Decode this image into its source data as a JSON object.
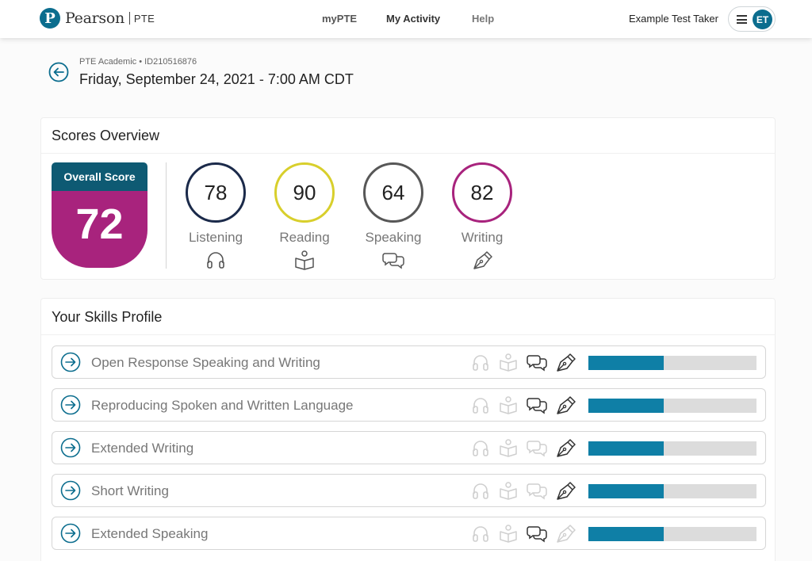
{
  "header": {
    "logo_letter": "P",
    "brand": "Pearson",
    "product": "PTE",
    "nav": [
      {
        "label": "myPTE"
      },
      {
        "label": "My Activity"
      },
      {
        "label": "Help"
      }
    ],
    "user_name": "Example Test Taker",
    "avatar_initials": "ET"
  },
  "test": {
    "breadcrumb": "PTE Academic • ID210516876",
    "date": "Friday, September 24, 2021",
    "separator": "-",
    "time": "7:00 AM CDT"
  },
  "overview": {
    "title": "Scores Overview",
    "overall_label": "Overall Score",
    "overall_value": "72",
    "skills": [
      {
        "name": "Listening",
        "score": "78",
        "color": "#1b2a4a",
        "icon": "headphones-icon"
      },
      {
        "name": "Reading",
        "score": "90",
        "color": "#d8cf2c",
        "icon": "book-icon"
      },
      {
        "name": "Speaking",
        "score": "64",
        "color": "#575757",
        "icon": "speech-bubbles-icon"
      },
      {
        "name": "Writing",
        "score": "82",
        "color": "#a8237d",
        "icon": "pen-icon"
      }
    ]
  },
  "skills_profile": {
    "title": "Your Skills Profile",
    "rows": [
      {
        "label": "Open Response Speaking and Writing",
        "active": [
          false,
          false,
          true,
          true
        ],
        "progress": 0.45
      },
      {
        "label": "Reproducing Spoken and Written Language",
        "active": [
          false,
          false,
          true,
          true
        ],
        "progress": 0.45
      },
      {
        "label": "Extended Writing",
        "active": [
          false,
          false,
          false,
          true
        ],
        "progress": 0.45
      },
      {
        "label": "Short Writing",
        "active": [
          false,
          false,
          false,
          true
        ],
        "progress": 0.45
      },
      {
        "label": "Extended Speaking",
        "active": [
          false,
          false,
          true,
          false
        ],
        "progress": 0.45
      }
    ]
  },
  "colors": {
    "brand": "#0b6d8e",
    "overall_header": "#0e5a73",
    "overall_body": "#a8237d",
    "bar_fill": "#0f7fa6",
    "bar_track": "#dcdcdc"
  }
}
